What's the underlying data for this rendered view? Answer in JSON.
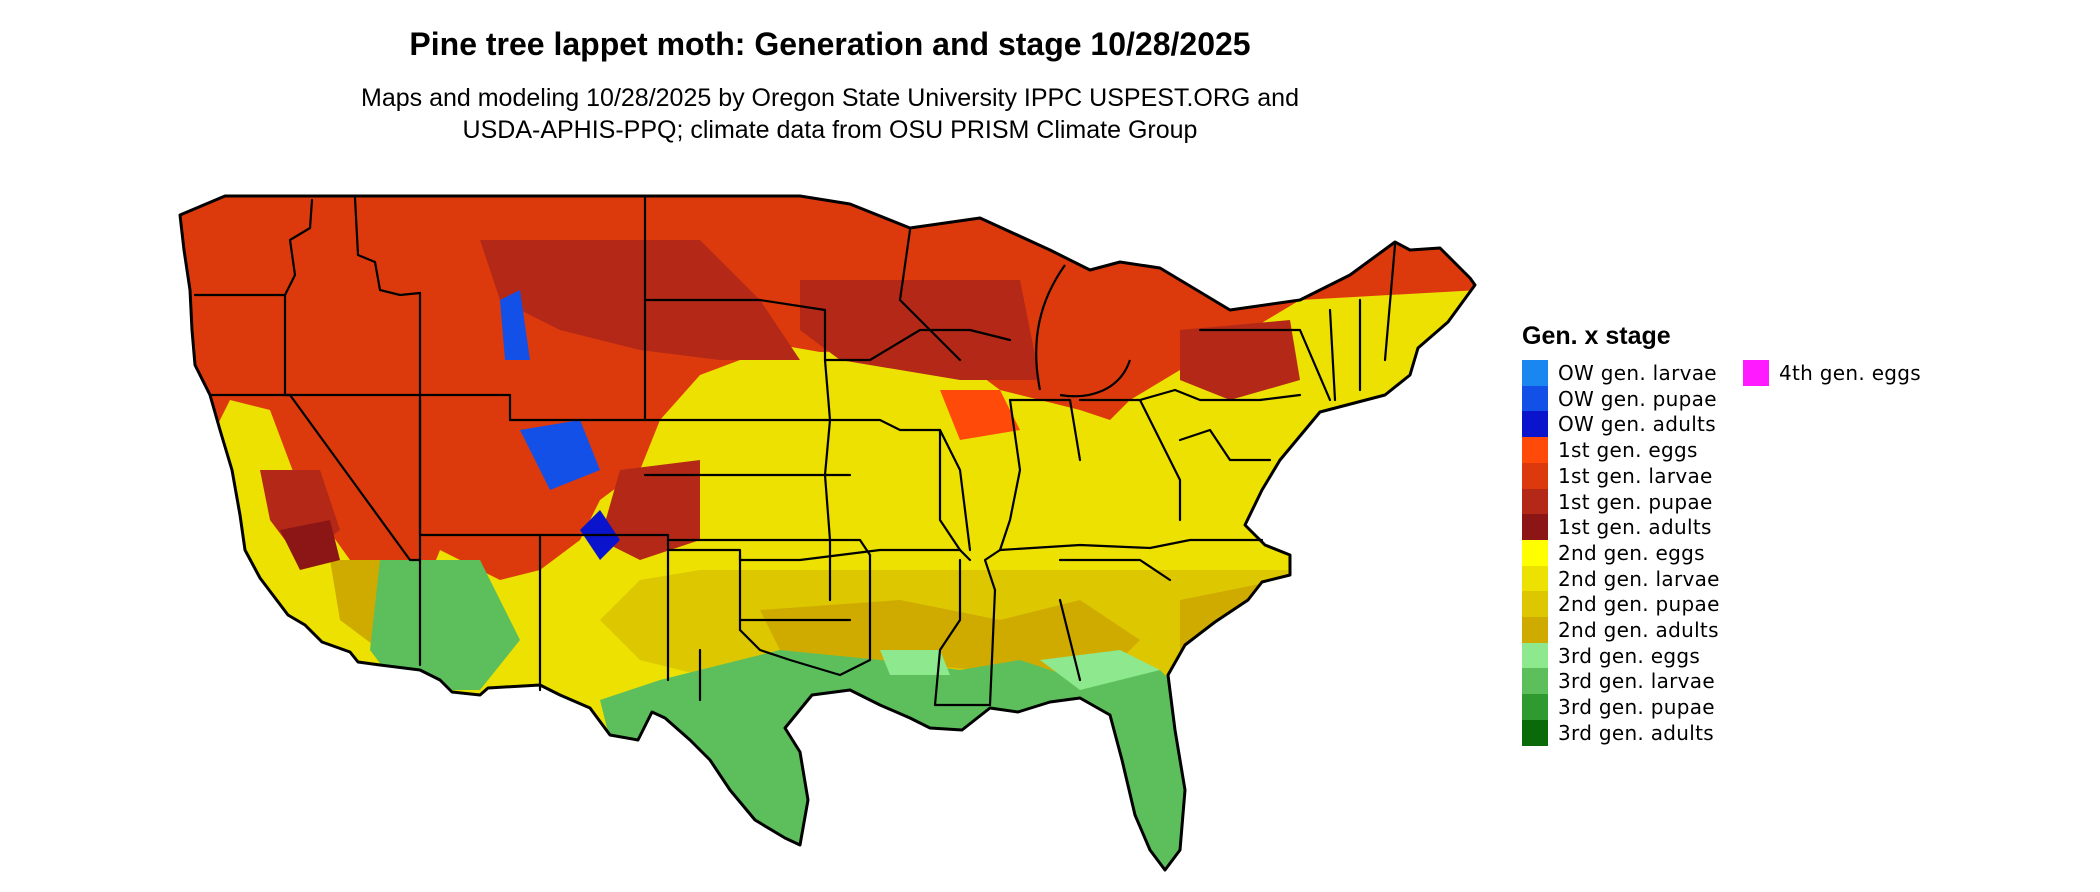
{
  "title": "Pine tree lappet moth: Generation and stage 10/28/2025",
  "subtitle_line1": "Maps and modeling 10/28/2025 by Oregon State University IPPC USPEST.ORG and",
  "subtitle_line2": "USDA-APHIS-PPQ; climate data from OSU PRISM Climate Group",
  "legend": {
    "title": "Gen. x stage",
    "items": [
      {
        "label": "OW gen. larvae",
        "color": "#1a86f0"
      },
      {
        "label": "OW gen. pupae",
        "color": "#1250e8"
      },
      {
        "label": "OW gen. adults",
        "color": "#0a14cc"
      },
      {
        "label": "1st gen. eggs",
        "color": "#ff4a0a"
      },
      {
        "label": "1st gen. larvae",
        "color": "#dc3a0c"
      },
      {
        "label": "1st gen. pupae",
        "color": "#b42818"
      },
      {
        "label": "1st gen. adults",
        "color": "#8c1616"
      },
      {
        "label": "2nd gen. eggs",
        "color": "#ffff00"
      },
      {
        "label": "2nd gen. larvae",
        "color": "#ece100"
      },
      {
        "label": "2nd gen. pupae",
        "color": "#ddc700"
      },
      {
        "label": "2nd gen. adults",
        "color": "#cfab00"
      },
      {
        "label": "3rd gen. eggs",
        "color": "#8ee88e"
      },
      {
        "label": "3rd gen. larvae",
        "color": "#5cbf5c"
      },
      {
        "label": "3rd gen. pupae",
        "color": "#2f9a2f"
      },
      {
        "label": "3rd gen. adults",
        "color": "#0a6a0a"
      },
      {
        "label": "4th gen. eggs",
        "color": "#ff1aff"
      }
    ]
  }
}
